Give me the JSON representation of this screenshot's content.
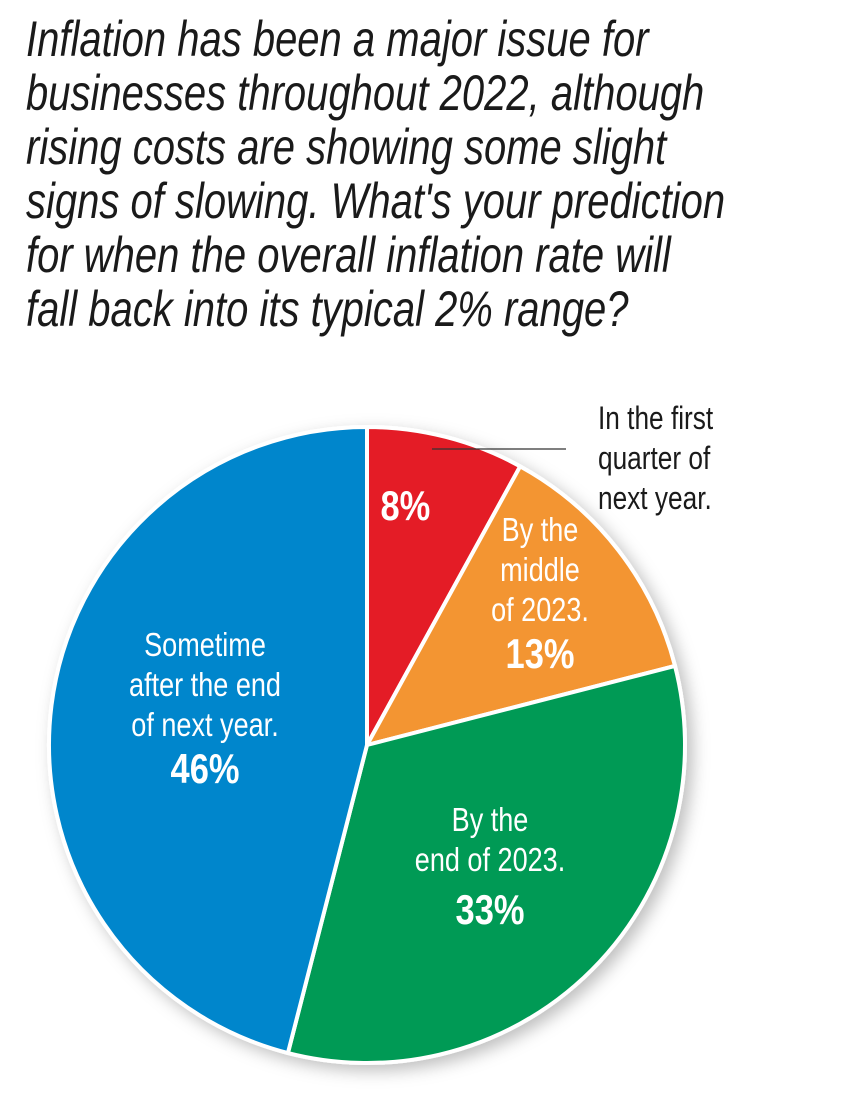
{
  "chart_data": {
    "type": "pie",
    "title": "Inflation has been a major issue for businesses throughout 2022, although rising costs are showing some slight signs of slowing. What's your prediction for when the overall inflation rate will fall back into its typical 2% range?",
    "title_lines": [
      "Inflation has been a major issue for",
      "businesses throughout 2022, although",
      "rising costs are showing some slight",
      "signs of slowing. What's your prediction",
      "for when the overall inflation rate will",
      "fall back into its typical 2% range?"
    ],
    "slices": [
      {
        "label": "In the first quarter of next year.",
        "label_lines": [
          "In the first",
          "quarter of",
          "next year."
        ],
        "value": 8,
        "value_label": "8%",
        "color": "#e41e26"
      },
      {
        "label": "By the middle of 2023.",
        "label_lines": [
          "By the",
          "middle",
          "of 2023."
        ],
        "value": 13,
        "value_label": "13%",
        "color": "#f39533"
      },
      {
        "label": "By the end of 2023.",
        "label_lines": [
          "By the",
          "end of 2023."
        ],
        "value": 33,
        "value_label": "33%",
        "color": "#009a54"
      },
      {
        "label": "Sometime after the end of next year.",
        "label_lines": [
          "Sometime",
          "after the end",
          "of next year."
        ],
        "value": 46,
        "value_label": "46%",
        "color": "#0286cc"
      }
    ],
    "start_angle": "top",
    "direction": "clockwise"
  }
}
